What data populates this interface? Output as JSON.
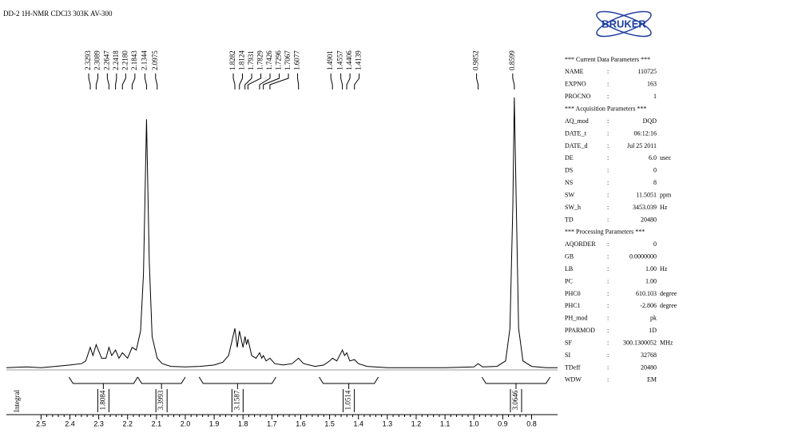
{
  "header": {
    "title": "DD-2  1H-NMR  CDCl3  303K  AV-300",
    "logo": "BRUKER"
  },
  "chart_data": {
    "type": "line",
    "x": [
      2.62,
      2.55,
      2.5,
      2.45,
      2.4,
      2.36,
      2.345,
      2.3293,
      2.32,
      2.3089,
      2.29,
      2.275,
      2.2647,
      2.255,
      2.2418,
      2.23,
      2.218,
      2.2,
      2.1843,
      2.17,
      2.155,
      2.145,
      2.1344,
      2.125,
      2.115,
      2.0975,
      2.08,
      2.05,
      2.0,
      1.95,
      1.9,
      1.87,
      1.85,
      1.8282,
      1.82,
      1.8124,
      1.8,
      1.7931,
      1.788,
      1.7829,
      1.77,
      1.755,
      1.7426,
      1.735,
      1.7296,
      1.72,
      1.7067,
      1.69,
      1.66,
      1.63,
      1.6077,
      1.59,
      1.55,
      1.52,
      1.5,
      1.4901,
      1.475,
      1.4557,
      1.448,
      1.4406,
      1.43,
      1.4139,
      1.4,
      1.37,
      1.3,
      1.2,
      1.1,
      1.0,
      0.9852,
      0.97,
      0.92,
      0.89,
      0.875,
      0.865,
      0.8599,
      0.853,
      0.845,
      0.83,
      0.8,
      0.75,
      0.71
    ],
    "values": [
      0.5,
      0.8,
      0.5,
      1,
      1.5,
      2,
      3,
      8,
      5,
      9,
      4,
      4,
      8,
      5,
      7,
      4,
      6,
      4,
      8,
      7,
      14,
      35,
      92,
      40,
      12,
      4,
      2,
      1,
      0.8,
      1,
      1.5,
      2.5,
      5,
      15,
      8,
      14,
      8,
      12,
      9,
      11,
      5,
      4,
      6,
      4,
      5,
      3,
      4,
      2,
      1.5,
      2,
      4,
      2,
      1,
      1.5,
      3,
      4,
      3,
      7,
      5,
      6,
      3,
      3.5,
      2,
      1,
      0.5,
      0.5,
      0.5,
      0.8,
      2,
      0.8,
      1,
      3,
      15,
      60,
      100,
      60,
      15,
      3,
      1,
      0.5,
      0.5
    ],
    "color": "#000000",
    "xlim": [
      2.62,
      0.71
    ],
    "ylim": [
      0,
      100
    ],
    "xticks": [
      2.5,
      2.4,
      2.3,
      2.2,
      2.1,
      {
        "value": 2,
        "label": "2.0"
      },
      1.9,
      1.8,
      1.7,
      1.6,
      1.5,
      1.4,
      1.3,
      1.2,
      1.1,
      {
        "value": 1,
        "label": "1.0"
      },
      0.9,
      0.8
    ],
    "peak_labels": [
      2.3293,
      2.3089,
      2.2647,
      2.2418,
      {
        "value": 2.218,
        "label": "2.2180"
      },
      2.1843,
      2.1344,
      2.0975,
      1.8282,
      1.8124,
      1.7931,
      1.7829,
      1.7426,
      1.7296,
      1.7067,
      1.6077,
      1.4901,
      1.4557,
      1.4406,
      1.4139,
      0.9852,
      0.8599
    ],
    "integral_label": "Integral",
    "integrals": [
      {
        "from": 2.403,
        "to": 2.165,
        "value": 1.8084
      },
      {
        "from": 2.165,
        "to": 2.0,
        "value": 3.3993
      },
      {
        "from": 1.952,
        "to": 1.686,
        "value": 3.1587
      },
      {
        "from": 1.536,
        "to": 1.331,
        "value": 1.0514
      },
      {
        "from": 0.972,
        "to": 0.736,
        "value": 3.0646
      }
    ]
  },
  "parameters": {
    "rows": [
      "*** Current Data Parameters ***",
      [
        "NAME",
        ":",
        "110725"
      ],
      [
        "EXPNO",
        ":",
        "163"
      ],
      [
        "PROCNO",
        ":",
        "1"
      ],
      "*** Acquisition Parameters ***",
      [
        "AQ_mod",
        ":",
        "DQD"
      ],
      [
        "DATE_t",
        ":",
        "06:12:16"
      ],
      [
        "DATE_d",
        ":",
        "Jul 25 2011"
      ],
      [
        "DE",
        ":",
        "6.0",
        "usec"
      ],
      [
        "DS",
        ":",
        "0"
      ],
      [
        "NS",
        ":",
        "8"
      ],
      [
        "SW",
        ":",
        "11.5051",
        "ppm"
      ],
      [
        "SW_h",
        ":",
        "3453.039",
        "Hz"
      ],
      [
        "TD",
        ":",
        "20480"
      ],
      "*** Processing Parameters ***",
      [
        "AQORDER",
        ":",
        "0"
      ],
      [
        "GB",
        ":",
        "0.0000000"
      ],
      [
        "LB",
        ":",
        "1.00",
        "Hz"
      ],
      [
        "PC",
        ":",
        "1.00"
      ],
      [
        "PHC0",
        ":",
        "610.103",
        "degree"
      ],
      [
        "PHC1",
        ":",
        "-2.806",
        "degree"
      ],
      [
        "PH_mod",
        ":",
        "pk"
      ],
      [
        "PPARMOD",
        ":",
        "1D"
      ],
      [
        "SF",
        ":",
        "300.1300052",
        "MHz"
      ],
      [
        "SI",
        ":",
        "32768"
      ],
      [
        "TDeff",
        ":",
        "20480"
      ],
      [
        "WDW",
        ":",
        "EM"
      ]
    ]
  }
}
